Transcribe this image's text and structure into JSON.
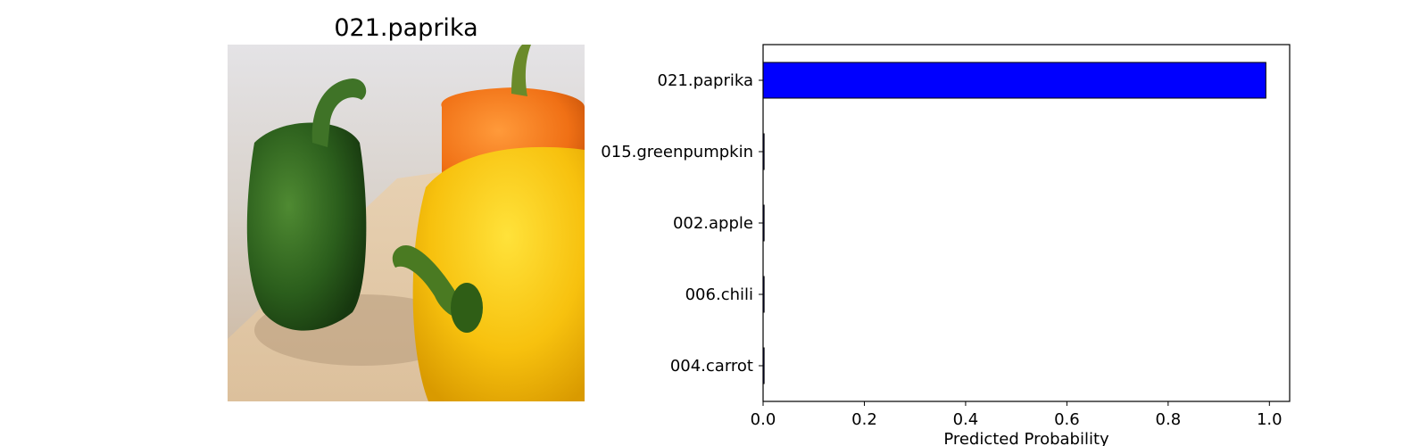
{
  "image_panel": {
    "title": "021.paprika",
    "photo_subject": "bell peppers (green, orange, yellow)"
  },
  "colors": {
    "bar_fill": "#0000ff",
    "bar_edge": "#000000"
  },
  "chart_data": {
    "type": "bar",
    "orientation": "horizontal",
    "categories": [
      "021.paprika",
      "015.greenpumpkin",
      "002.apple",
      "006.chili",
      "004.carrot"
    ],
    "values": [
      0.993,
      0.002,
      0.002,
      0.002,
      0.002
    ],
    "xlabel": "Predicted Probability",
    "ylabel": "",
    "xlim": [
      0,
      1.04
    ],
    "xticks": [
      "0.0",
      "0.2",
      "0.4",
      "0.6",
      "0.8",
      "1.0"
    ],
    "grid": false
  }
}
